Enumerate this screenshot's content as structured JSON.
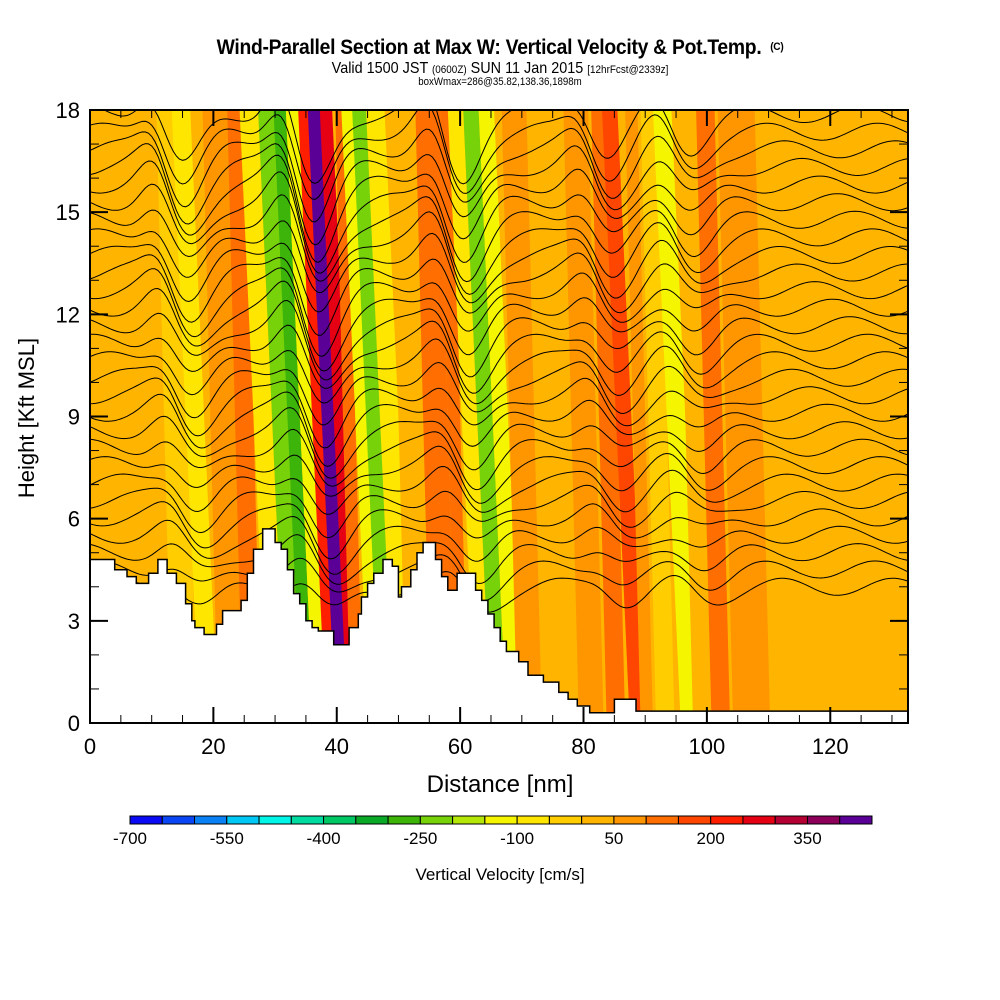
{
  "header": {
    "title": "Wind-Parallel Section at Max W: Vertical Velocity & Pot.Temp.",
    "copyright": "(C)",
    "valid_prefix": "Valid 1500 JST",
    "valid_utc": "(0600Z)",
    "valid_date": "SUN 11 Jan 2015",
    "forecast": "[12hrFcst@2339z]",
    "boxwmax": "boxWmax=286@35.82,138.36,1898m"
  },
  "chart_data": {
    "type": "heatmap",
    "title": "Wind-Parallel Section at Max W: Vertical Velocity & Pot.Temp.",
    "xlabel": "Distance [nm]",
    "ylabel": "Height [Kft MSL]",
    "xlim": [
      0,
      132.6
    ],
    "ylim": [
      0,
      18
    ],
    "x_ticks": [
      0,
      20,
      40,
      60,
      80,
      100,
      120
    ],
    "x_tick_labels": [
      "0",
      "20",
      "40",
      "60",
      "80",
      "100",
      "120"
    ],
    "x_minor_step": 5,
    "y_ticks": [
      0,
      3,
      6,
      9,
      12,
      15,
      18
    ],
    "y_tick_labels": [
      "0",
      "3",
      "6",
      "9",
      "12",
      "15",
      "18"
    ],
    "y_minor_step": 1,
    "field": "Vertical Velocity [cm/s] (filled) with potential temperature contours",
    "velocity_bands": [
      {
        "x_center": 5,
        "width": 10,
        "value": 25
      },
      {
        "x_center": 14,
        "width": 4,
        "value": -50
      },
      {
        "x_center": 17,
        "width": 3,
        "value": -100
      },
      {
        "x_center": 22,
        "width": 5,
        "value": 75
      },
      {
        "x_center": 25,
        "width": 3,
        "value": 100
      },
      {
        "x_center": 28,
        "width": 3,
        "value": -100
      },
      {
        "x_center": 31,
        "width": 3,
        "value": -250
      },
      {
        "x_center": 33,
        "width": 2,
        "value": -300
      },
      {
        "x_center": 35,
        "width": 2,
        "value": -150
      },
      {
        "x_center": 37,
        "width": 2,
        "value": 200
      },
      {
        "x_center": 38.8,
        "width": 2.5,
        "value": 400
      },
      {
        "x_center": 40.5,
        "width": 2,
        "value": 250
      },
      {
        "x_center": 42,
        "width": 2,
        "value": 100
      },
      {
        "x_center": 44,
        "width": 2,
        "value": -150
      },
      {
        "x_center": 46,
        "width": 2.5,
        "value": -250
      },
      {
        "x_center": 48.5,
        "width": 3,
        "value": -100
      },
      {
        "x_center": 52,
        "width": 4,
        "value": 25
      },
      {
        "x_center": 56,
        "width": 4,
        "value": 100
      },
      {
        "x_center": 59,
        "width": 2,
        "value": 125
      },
      {
        "x_center": 61.5,
        "width": 2.5,
        "value": -100
      },
      {
        "x_center": 64,
        "width": 2.5,
        "value": -250
      },
      {
        "x_center": 66.5,
        "width": 2.5,
        "value": -150
      },
      {
        "x_center": 70,
        "width": 4,
        "value": 50
      },
      {
        "x_center": 75,
        "width": 5,
        "value": 25
      },
      {
        "x_center": 80,
        "width": 4,
        "value": 50
      },
      {
        "x_center": 84,
        "width": 3,
        "value": 100
      },
      {
        "x_center": 86.5,
        "width": 2.5,
        "value": 175
      },
      {
        "x_center": 89,
        "width": 2,
        "value": 75
      },
      {
        "x_center": 92,
        "width": 3,
        "value": -50
      },
      {
        "x_center": 95,
        "width": 3,
        "value": -150
      },
      {
        "x_center": 98,
        "width": 3,
        "value": 0
      },
      {
        "x_center": 101,
        "width": 3,
        "value": 100
      },
      {
        "x_center": 106,
        "width": 6,
        "value": 50
      },
      {
        "x_center": 115,
        "width": 10,
        "value": 25
      },
      {
        "x_center": 127,
        "width": 12,
        "value": 25
      }
    ],
    "max_w": {
      "value": 286,
      "lat": 35.82,
      "lon": 138.36,
      "elev_m": 1898
    },
    "contour_wave_centers_nm": [
      18,
      39,
      63,
      87,
      100
    ],
    "contour_count": 28,
    "terrain_kft": [
      [
        0,
        4.8
      ],
      [
        4,
        4.8
      ],
      [
        4,
        4.5
      ],
      [
        6,
        4.5
      ],
      [
        6,
        4.3
      ],
      [
        7.5,
        4.3
      ],
      [
        7.5,
        4.1
      ],
      [
        9.5,
        4.1
      ],
      [
        9.5,
        4.4
      ],
      [
        11,
        4.4
      ],
      [
        11,
        4.8
      ],
      [
        12.5,
        4.8
      ],
      [
        12.5,
        4.4
      ],
      [
        14,
        4.4
      ],
      [
        14,
        4.1
      ],
      [
        15.5,
        4.1
      ],
      [
        15.5,
        3.5
      ],
      [
        16.5,
        3.5
      ],
      [
        16.5,
        3.0
      ],
      [
        17,
        3.0
      ],
      [
        17,
        2.8
      ],
      [
        18.5,
        2.8
      ],
      [
        18.5,
        2.6
      ],
      [
        20.5,
        2.6
      ],
      [
        20.5,
        2.9
      ],
      [
        21.5,
        2.9
      ],
      [
        21.5,
        3.3
      ],
      [
        24.5,
        3.3
      ],
      [
        24.5,
        3.6
      ],
      [
        25.5,
        3.6
      ],
      [
        25.5,
        4.4
      ],
      [
        26.5,
        4.4
      ],
      [
        26.5,
        5.1
      ],
      [
        28,
        5.1
      ],
      [
        28,
        5.7
      ],
      [
        30,
        5.7
      ],
      [
        30,
        5.3
      ],
      [
        31,
        5.3
      ],
      [
        31,
        5.1
      ],
      [
        32,
        5.1
      ],
      [
        32,
        4.5
      ],
      [
        33,
        4.5
      ],
      [
        33,
        3.8
      ],
      [
        34,
        3.8
      ],
      [
        34,
        3.5
      ],
      [
        35,
        3.5
      ],
      [
        35,
        3.0
      ],
      [
        36,
        3.0
      ],
      [
        36,
        2.8
      ],
      [
        37,
        2.8
      ],
      [
        37,
        2.7
      ],
      [
        39.5,
        2.7
      ],
      [
        39.5,
        2.3
      ],
      [
        42,
        2.3
      ],
      [
        42,
        2.8
      ],
      [
        43.5,
        2.8
      ],
      [
        43.5,
        3.2
      ],
      [
        44,
        3.2
      ],
      [
        44,
        3.7
      ],
      [
        45,
        3.7
      ],
      [
        45,
        4.1
      ],
      [
        46,
        4.1
      ],
      [
        46,
        4.4
      ],
      [
        47.5,
        4.4
      ],
      [
        47.5,
        4.8
      ],
      [
        49,
        4.8
      ],
      [
        49,
        4.6
      ],
      [
        50,
        4.6
      ],
      [
        50,
        3.7
      ],
      [
        50.5,
        3.7
      ],
      [
        50.5,
        4.0
      ],
      [
        52,
        4.0
      ],
      [
        52,
        4.5
      ],
      [
        53,
        4.5
      ],
      [
        53,
        5.0
      ],
      [
        54,
        5.0
      ],
      [
        54,
        5.3
      ],
      [
        56,
        5.3
      ],
      [
        56,
        4.8
      ],
      [
        57,
        4.8
      ],
      [
        57,
        4.3
      ],
      [
        58,
        4.3
      ],
      [
        58,
        3.9
      ],
      [
        59.5,
        3.9
      ],
      [
        59.5,
        4.4
      ],
      [
        62.5,
        4.4
      ],
      [
        62.5,
        3.9
      ],
      [
        63.5,
        3.9
      ],
      [
        63.5,
        3.6
      ],
      [
        64.5,
        3.6
      ],
      [
        64.5,
        3.2
      ],
      [
        65.5,
        3.2
      ],
      [
        65.5,
        2.8
      ],
      [
        66.5,
        2.8
      ],
      [
        66.5,
        2.4
      ],
      [
        67.5,
        2.4
      ],
      [
        67.5,
        2.1
      ],
      [
        69.5,
        2.1
      ],
      [
        69.5,
        1.8
      ],
      [
        71,
        1.8
      ],
      [
        71,
        1.4
      ],
      [
        73.5,
        1.4
      ],
      [
        73.5,
        1.2
      ],
      [
        76,
        1.2
      ],
      [
        76,
        0.9
      ],
      [
        77.5,
        0.9
      ],
      [
        77.5,
        0.7
      ],
      [
        79,
        0.7
      ],
      [
        79,
        0.5
      ],
      [
        81,
        0.5
      ],
      [
        81,
        0.3
      ],
      [
        85,
        0.3
      ],
      [
        85,
        0.7
      ],
      [
        88.5,
        0.7
      ],
      [
        88.5,
        0.35
      ],
      [
        132.6,
        0.35
      ]
    ]
  },
  "colorbar": {
    "label": "Vertical Velocity [cm/s]",
    "min": -700,
    "step": 50,
    "tick_labels": [
      "-700",
      "-550",
      "-400",
      "-250",
      "-100",
      "50",
      "200",
      "350"
    ],
    "tick_values": [
      -700,
      -550,
      -400,
      -250,
      -100,
      50,
      200,
      350
    ],
    "colors": [
      "#0a0af5",
      "#0a46f5",
      "#0a82f5",
      "#00c8f5",
      "#00f5e6",
      "#00dca0",
      "#00c864",
      "#0aaa28",
      "#3cb40a",
      "#78d20a",
      "#b4e60a",
      "#f5f500",
      "#ffe600",
      "#ffcd00",
      "#ffb400",
      "#ff9600",
      "#ff6e00",
      "#ff4600",
      "#ff1e00",
      "#e60014",
      "#b40032",
      "#8c005a",
      "#5a0096"
    ]
  }
}
